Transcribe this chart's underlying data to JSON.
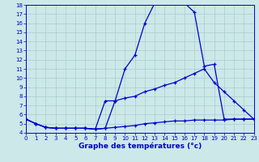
{
  "xlabel": "Graphe des températures (°c)",
  "bg_color": "#cce8e8",
  "grid_color": "#aacccc",
  "line_color": "#0000cc",
  "xlim_min": 0,
  "xlim_max": 23,
  "ylim_min": 4,
  "ylim_max": 18,
  "yticks": [
    4,
    5,
    6,
    7,
    8,
    9,
    10,
    11,
    12,
    13,
    14,
    15,
    16,
    17,
    18
  ],
  "xticks": [
    0,
    1,
    2,
    3,
    4,
    5,
    6,
    7,
    8,
    9,
    10,
    11,
    12,
    13,
    14,
    15,
    16,
    17,
    18,
    19,
    20,
    21,
    22,
    23
  ],
  "curve1_x": [
    0,
    1,
    2,
    3,
    4,
    5,
    6,
    7,
    8,
    9,
    10,
    11,
    12,
    13,
    14,
    15,
    16,
    17,
    18,
    19,
    20,
    21,
    22,
    23
  ],
  "curve1_y": [
    5.5,
    5.0,
    4.6,
    4.5,
    4.5,
    4.5,
    4.5,
    4.4,
    4.5,
    7.5,
    11.0,
    12.5,
    16.0,
    18.2,
    18.4,
    18.4,
    18.2,
    17.2,
    11.3,
    11.5,
    5.5,
    5.5,
    5.5,
    5.5
  ],
  "curve2_x": [
    0,
    1,
    2,
    3,
    4,
    5,
    6,
    7,
    8,
    9,
    10,
    11,
    12,
    13,
    14,
    15,
    16,
    17,
    18,
    19,
    20,
    21,
    22,
    23
  ],
  "curve2_y": [
    5.5,
    5.0,
    4.6,
    4.5,
    4.5,
    4.5,
    4.5,
    4.4,
    7.5,
    7.5,
    7.8,
    8.0,
    8.5,
    8.8,
    9.2,
    9.5,
    10.0,
    10.5,
    11.0,
    9.5,
    8.5,
    7.5,
    6.5,
    5.5
  ],
  "curve3_x": [
    0,
    1,
    2,
    3,
    4,
    5,
    6,
    7,
    8,
    9,
    10,
    11,
    12,
    13,
    14,
    15,
    16,
    17,
    18,
    19,
    20,
    21,
    22,
    23
  ],
  "curve3_y": [
    5.5,
    5.0,
    4.6,
    4.5,
    4.5,
    4.5,
    4.5,
    4.4,
    4.5,
    4.6,
    4.7,
    4.8,
    5.0,
    5.1,
    5.2,
    5.3,
    5.3,
    5.4,
    5.4,
    5.4,
    5.4,
    5.5,
    5.5,
    5.5
  ]
}
